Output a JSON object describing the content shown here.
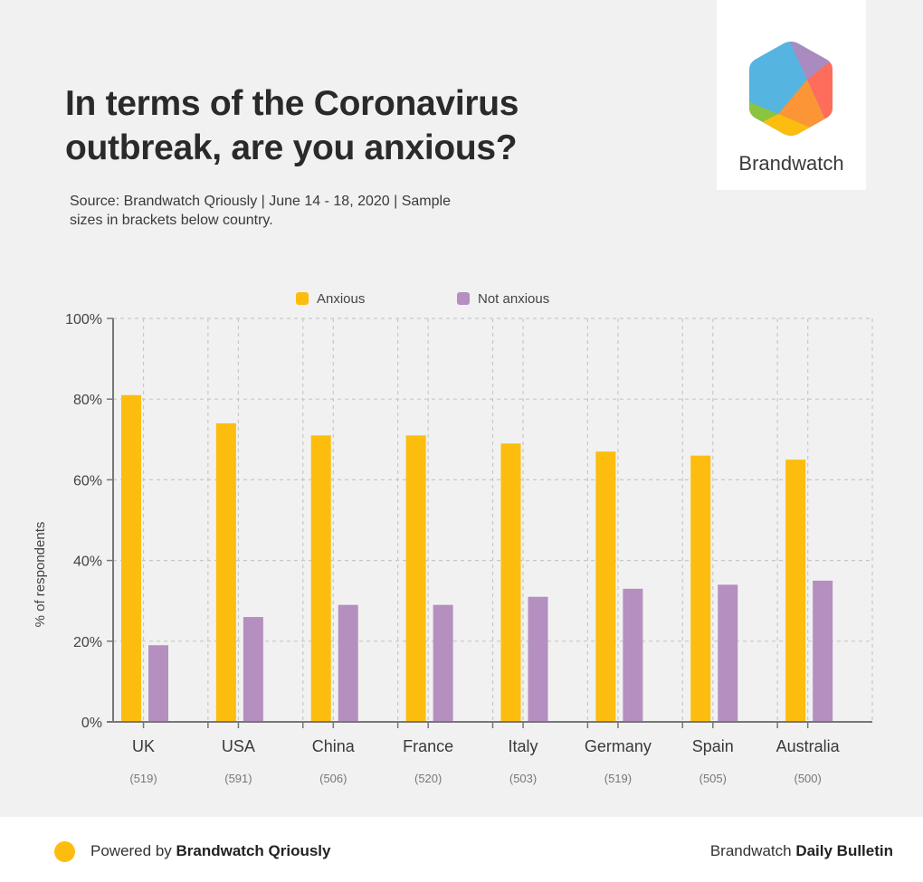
{
  "header": {
    "title": "In terms of the Coronavirus outbreak, are you anxious?",
    "subtitle": "Source: Brandwatch Qriously | June 14 - 18, 2020 | Sample sizes in brackets below country."
  },
  "logo": {
    "text": "Brandwatch",
    "icon": "brandwatch-hexagon-icon",
    "colors": [
      "#56b4e0",
      "#a98bc0",
      "#fe6c5c",
      "#fb9535",
      "#fdbd0e",
      "#8cc43f"
    ]
  },
  "footer": {
    "left_prefix": "Powered by ",
    "left_bold": "Brandwatch Qriously",
    "right_prefix": "Brandwatch ",
    "right_bold": "Daily Bulletin",
    "dot_color": "#fdbd0e"
  },
  "chart_data": {
    "type": "bar",
    "title": "In terms of the Coronavirus outbreak, are you anxious?",
    "xlabel": "",
    "ylabel": "% of respondents",
    "ylim": [
      0,
      100
    ],
    "yticks": [
      0,
      20,
      40,
      60,
      80,
      100
    ],
    "ytick_labels": [
      "0%",
      "20%",
      "40%",
      "60%",
      "80%",
      "100%"
    ],
    "grid": true,
    "legend_position": "top-center",
    "categories": [
      "UK",
      "USA",
      "China",
      "France",
      "Italy",
      "Germany",
      "Spain",
      "Australia"
    ],
    "sample_sizes": [
      "(519)",
      "(591)",
      "(506)",
      "(520)",
      "(503)",
      "(519)",
      "(505)",
      "(500)"
    ],
    "series": [
      {
        "name": "Anxious",
        "color": "#fdbd0e",
        "values": [
          81,
          74,
          71,
          71,
          69,
          67,
          66,
          65
        ]
      },
      {
        "name": "Not anxious",
        "color": "#b48fc0",
        "values": [
          19,
          26,
          29,
          29,
          31,
          33,
          34,
          35
        ]
      }
    ]
  }
}
